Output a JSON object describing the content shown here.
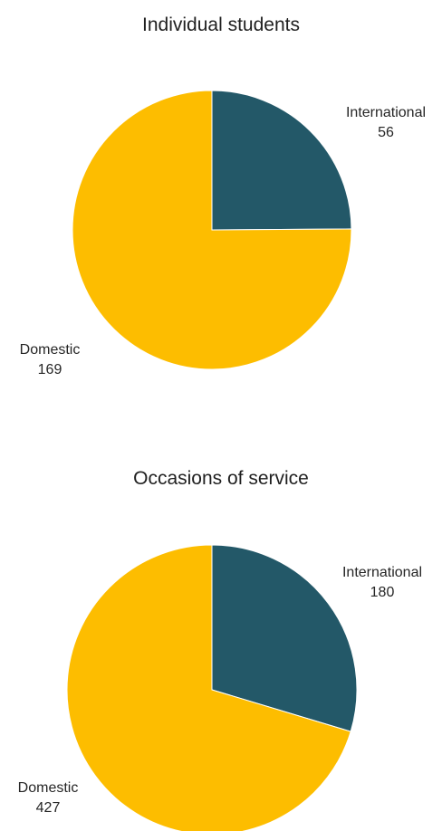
{
  "chart_data": [
    {
      "type": "pie",
      "title": "Individual students",
      "slices": [
        {
          "label": "International",
          "value": 56,
          "color": "#235868"
        },
        {
          "label": "Domestic",
          "value": 169,
          "color": "#FDBD00"
        }
      ],
      "legend": "none",
      "data_labels": "category-and-value"
    },
    {
      "type": "pie",
      "title": "Occasions of service",
      "slices": [
        {
          "label": "International",
          "value": 180,
          "color": "#235868"
        },
        {
          "label": "Domestic",
          "value": 427,
          "color": "#FDBD00"
        }
      ],
      "legend": "none",
      "data_labels": "category-and-value"
    }
  ]
}
